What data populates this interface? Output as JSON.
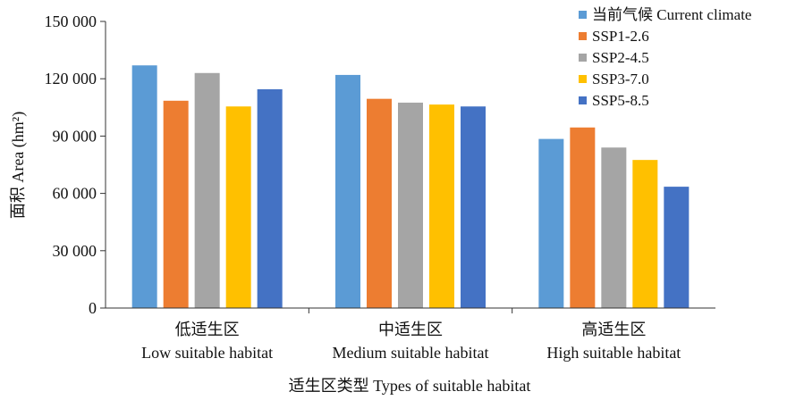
{
  "chart_data": {
    "type": "bar",
    "categories": [
      {
        "line1": "低适生区",
        "line2": "Low suitable habitat"
      },
      {
        "line1": "中适生区",
        "line2": "Medium suitable habitat"
      },
      {
        "line1": "高适生区",
        "line2": "High suitable habitat"
      }
    ],
    "series": [
      {
        "name": "当前气候 Current climate",
        "color": "#5b9bd5",
        "values": [
          127000,
          122000,
          88500
        ]
      },
      {
        "name": "SSP1-2.6",
        "color": "#ed7d31",
        "values": [
          108500,
          109500,
          94500
        ]
      },
      {
        "name": "SSP2-4.5",
        "color": "#a5a5a5",
        "values": [
          123000,
          107500,
          84000
        ]
      },
      {
        "name": "SSP3-7.0",
        "color": "#ffc000",
        "values": [
          105500,
          106500,
          77500
        ]
      },
      {
        "name": "SSP5-8.5",
        "color": "#4472c4",
        "values": [
          114500,
          105500,
          63500
        ]
      }
    ],
    "ylim": [
      0,
      150000
    ],
    "yticks": [
      0,
      30000,
      60000,
      90000,
      120000,
      150000
    ],
    "ytick_labels": [
      "0",
      "30 000",
      "60 000",
      "90 000",
      "120 000",
      "150 000"
    ],
    "ylabel": "面积 Area (hm²)",
    "xlabel": "适生区类型 Types of suitable habitat",
    "legend_position": "top-right",
    "grid": false
  }
}
